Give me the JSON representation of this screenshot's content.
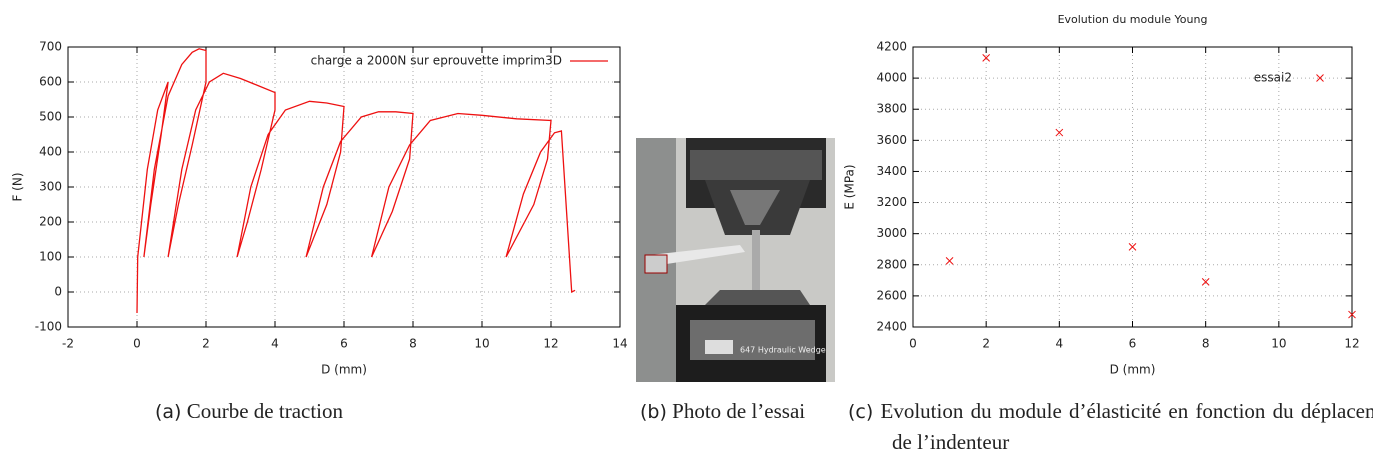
{
  "chart_data": [
    {
      "type": "line",
      "xlabel": "D (mm)",
      "ylabel": "F (N)",
      "xlim": [
        -2,
        14
      ],
      "ylim": [
        -100,
        700
      ],
      "xticks": [
        -2,
        0,
        2,
        4,
        6,
        8,
        10,
        12,
        14
      ],
      "yticks": [
        -100,
        0,
        100,
        200,
        300,
        400,
        500,
        600,
        700
      ],
      "grid": true,
      "legend": "upper right",
      "series": [
        {
          "name": "charge a 2000N sur eprouvette imprim3D",
          "color": "#ee1111",
          "x": [
            0,
            0.02,
            0.3,
            0.6,
            0.9,
            0.7,
            0.4,
            0.2,
            0.5,
            0.9,
            1.3,
            1.6,
            1.8,
            2.0,
            2.0,
            1.6,
            1.2,
            0.9,
            1.3,
            1.7,
            2.1,
            2.5,
            3.0,
            3.5,
            4.0,
            4.0,
            3.6,
            3.2,
            2.9,
            3.3,
            3.8,
            4.3,
            5.0,
            5.5,
            6.0,
            5.9,
            5.5,
            4.9,
            5.4,
            5.9,
            6.5,
            7.0,
            7.5,
            8.0,
            7.9,
            7.4,
            6.8,
            7.3,
            7.9,
            8.5,
            9.3,
            10.0,
            11.0,
            12.0,
            11.9,
            11.5,
            10.7,
            11.2,
            11.7,
            12.1,
            12.3,
            12.6,
            12.7
          ],
          "values": [
            -60,
            100,
            350,
            520,
            600,
            450,
            250,
            100,
            350,
            560,
            650,
            685,
            695,
            690,
            600,
            420,
            250,
            100,
            350,
            520,
            600,
            625,
            610,
            590,
            570,
            520,
            350,
            200,
            100,
            300,
            450,
            520,
            545,
            540,
            530,
            400,
            250,
            100,
            300,
            430,
            500,
            515,
            515,
            510,
            380,
            230,
            100,
            300,
            420,
            490,
            510,
            505,
            495,
            490,
            380,
            250,
            100,
            280,
            400,
            455,
            460,
            0,
            5
          ]
        }
      ]
    },
    {
      "type": "scatter",
      "title": "Evolution du module Young",
      "xlabel": "D (mm)",
      "ylabel": "E (MPa)",
      "xlim": [
        0,
        12
      ],
      "ylim": [
        2400,
        4200
      ],
      "xticks": [
        0,
        2,
        4,
        6,
        8,
        10,
        12
      ],
      "yticks": [
        2400,
        2600,
        2800,
        3000,
        3200,
        3400,
        3600,
        3800,
        4000,
        4200
      ],
      "grid": true,
      "legend": "upper right",
      "series": [
        {
          "name": "essai2",
          "color": "#ee1111",
          "x": [
            1,
            2,
            4,
            6,
            8,
            12
          ],
          "values": [
            2825,
            4130,
            3650,
            2915,
            2690,
            2480
          ]
        }
      ]
    }
  ],
  "captions": [
    {
      "label": "(a)",
      "text": "Courbe de traction"
    },
    {
      "label": "(b)",
      "text": "Photo de l’essai"
    },
    {
      "label": "(c)",
      "text": "Evolution du module d’élasticité en fonction du déplacement de l’indenteur"
    }
  ]
}
